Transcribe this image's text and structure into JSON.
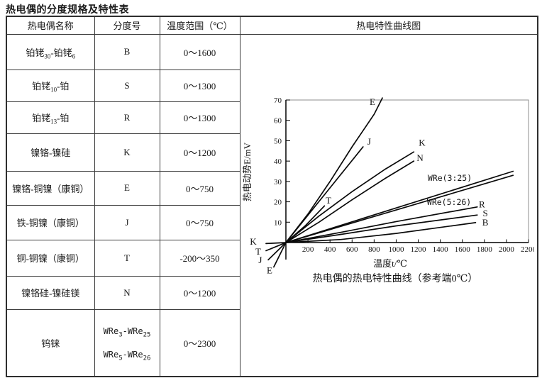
{
  "title": "热电偶的分度规格及特性表",
  "table": {
    "headers": [
      "热电偶名称",
      "分度号",
      "温度范围（℃）",
      "热电特性曲线图"
    ],
    "rows": [
      {
        "name": [
          {
            "t": "铂铑"
          },
          {
            "s": "30"
          },
          {
            "t": "-铂铑"
          },
          {
            "s": "6"
          }
        ],
        "code": [
          [
            {
              "t": "B"
            }
          ]
        ],
        "range": "0～1600"
      },
      {
        "name": [
          {
            "t": "铂铑"
          },
          {
            "s": "10"
          },
          {
            "t": "-铂"
          }
        ],
        "code": [
          [
            {
              "t": "S"
            }
          ]
        ],
        "range": "0～1300"
      },
      {
        "name": [
          {
            "t": "铂铑"
          },
          {
            "s": "13"
          },
          {
            "t": "-铂"
          }
        ],
        "code": [
          [
            {
              "t": "R"
            }
          ]
        ],
        "range": "0～1300"
      },
      {
        "name": [
          {
            "t": "镍铬-镍硅"
          }
        ],
        "code": [
          [
            {
              "t": "K"
            }
          ]
        ],
        "range": "0～1200"
      },
      {
        "name": [
          {
            "t": "镍铬-铜镍（康铜）"
          }
        ],
        "code": [
          [
            {
              "t": "E"
            }
          ]
        ],
        "range": "0～750"
      },
      {
        "name": [
          {
            "t": "铁-铜镍（康铜）"
          }
        ],
        "code": [
          [
            {
              "t": "J"
            }
          ]
        ],
        "range": "0～750"
      },
      {
        "name": [
          {
            "t": "铜-铜镍（康铜）"
          }
        ],
        "code": [
          [
            {
              "t": "T"
            }
          ]
        ],
        "range": "-200～350"
      },
      {
        "name": [
          {
            "t": "镍铬硅-镍硅镁"
          }
        ],
        "code": [
          [
            {
              "t": "N"
            }
          ]
        ],
        "range": "0～1200"
      },
      {
        "name": [
          {
            "t": "钨铼"
          }
        ],
        "code": [
          [
            {
              "t": "WRe"
            },
            {
              "s": "3"
            },
            {
              "t": "-WRe"
            },
            {
              "s": "25"
            }
          ],
          [
            {
              "t": "WRe"
            },
            {
              "s": "5"
            },
            {
              "t": "-WRe"
            },
            {
              "s": "26"
            }
          ]
        ],
        "range": "0～2300"
      }
    ]
  },
  "chart_data": {
    "type": "line",
    "title": "热电特性曲线图",
    "xlabel": "温度t/℃",
    "ylabel": "热电动势E/mV",
    "caption": "热电偶的热电特性曲线（参考端0℃）",
    "xlim": [
      0,
      2200
    ],
    "ylim": [
      0,
      70
    ],
    "x_ticks": [
      200,
      400,
      600,
      800,
      1000,
      1200,
      1400,
      1600,
      1800,
      2000,
      2200
    ],
    "y_ticks": [
      10,
      20,
      30,
      40,
      50,
      60,
      70
    ],
    "grid": false,
    "legend_position": "inline-labels",
    "series": [
      {
        "name": "E",
        "points": [
          [
            -110,
            -12
          ],
          [
            0,
            0
          ],
          [
            200,
            14
          ],
          [
            400,
            30
          ],
          [
            600,
            47
          ],
          [
            800,
            63
          ],
          [
            875,
            71
          ]
        ],
        "labels": [
          {
            "text": "E",
            "t": 785,
            "mv": 69
          },
          {
            "text": "E",
            "t": -148,
            "mv": -13.8
          }
        ]
      },
      {
        "name": "J",
        "points": [
          [
            -160,
            -8.5
          ],
          [
            0,
            0
          ],
          [
            350,
            23.5
          ],
          [
            700,
            47
          ]
        ],
        "labels": [
          {
            "text": "J",
            "t": 755,
            "mv": 49.5
          },
          {
            "text": "J",
            "t": -232,
            "mv": -8.7
          }
        ]
      },
      {
        "name": "T",
        "points": [
          [
            -180,
            -4
          ],
          [
            0,
            0
          ],
          [
            180,
            8.5
          ],
          [
            350,
            18
          ]
        ],
        "labels": [
          {
            "text": "T",
            "t": 386,
            "mv": 20.5
          },
          {
            "text": "T",
            "t": -251,
            "mv": -4.6
          }
        ]
      },
      {
        "name": "K",
        "points": [
          [
            -180,
            -0.5
          ],
          [
            0,
            0
          ],
          [
            300,
            13
          ],
          [
            600,
            25
          ],
          [
            900,
            36
          ],
          [
            1160,
            44.5
          ]
        ],
        "labels": [
          {
            "text": "K",
            "t": 1235,
            "mv": 49
          },
          {
            "text": "K",
            "t": -296,
            "mv": 0.3
          }
        ]
      },
      {
        "name": "N",
        "points": [
          [
            0,
            0
          ],
          [
            300,
            10
          ],
          [
            600,
            21
          ],
          [
            900,
            31.5
          ],
          [
            1160,
            40
          ]
        ],
        "labels": [
          {
            "text": "N",
            "t": 1216,
            "mv": 41.4
          }
        ]
      },
      {
        "name": "WRe(3:25)",
        "points": [
          [
            0,
            0
          ],
          [
            1000,
            17
          ],
          [
            2060,
            35
          ]
        ],
        "labels": [
          {
            "text": "WRe(3:25)",
            "t": 1486,
            "mv": 31.7
          }
        ]
      },
      {
        "name": "WRe(5:26)",
        "points": [
          [
            0,
            0
          ],
          [
            1000,
            16
          ],
          [
            2060,
            33
          ]
        ],
        "labels": [
          {
            "text": "WRe(5:26)",
            "t": 1480,
            "mv": 19.9
          }
        ]
      },
      {
        "name": "R",
        "points": [
          [
            0,
            0
          ],
          [
            500,
            5
          ],
          [
            1000,
            10.3
          ],
          [
            1735,
            17.5
          ]
        ],
        "labels": [
          {
            "text": "R",
            "t": 1778,
            "mv": 18.6
          }
        ]
      },
      {
        "name": "S",
        "points": [
          [
            0,
            0
          ],
          [
            500,
            4
          ],
          [
            1000,
            8.2
          ],
          [
            1735,
            13.5
          ]
        ],
        "labels": [
          {
            "text": "S",
            "t": 1808,
            "mv": 14.3
          }
        ]
      },
      {
        "name": "B",
        "points": [
          [
            0,
            0
          ],
          [
            500,
            1.5
          ],
          [
            1000,
            4.5
          ],
          [
            1720,
            9.8
          ]
        ],
        "labels": [
          {
            "text": "B",
            "t": 1808,
            "mv": 9.8
          }
        ]
      }
    ]
  }
}
